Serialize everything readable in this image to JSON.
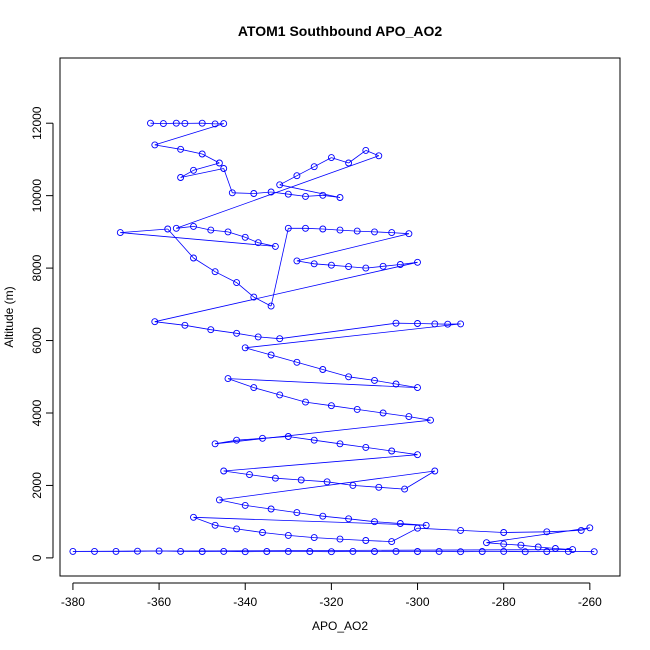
{
  "chart_data": {
    "type": "scatter",
    "title": "ATOM1 Southbound APO_AO2",
    "xlabel": "APO_AO2",
    "ylabel": "Altitude (m)",
    "xlim": [
      -383,
      -253
    ],
    "ylim": [
      -500,
      13800
    ],
    "x_ticks": [
      -380,
      -360,
      -340,
      -320,
      -300,
      -280,
      -260
    ],
    "y_ticks": [
      0,
      2000,
      4000,
      6000,
      8000,
      10000,
      12000
    ],
    "grid": false,
    "legend": "none",
    "series_color": "#0000ff",
    "marker": "open-circle",
    "connected": true,
    "points": [
      [
        -362,
        12000
      ],
      [
        -359,
        11990
      ],
      [
        -356,
        12000
      ],
      [
        -354,
        11995
      ],
      [
        -350,
        12000
      ],
      [
        -347,
        11980
      ],
      [
        -345,
        11990
      ],
      [
        -361,
        11400
      ],
      [
        -355,
        11280
      ],
      [
        -350,
        11150
      ],
      [
        -346,
        10900
      ],
      [
        -352,
        10700
      ],
      [
        -355,
        10500
      ],
      [
        -345,
        10750
      ],
      [
        -343,
        10080
      ],
      [
        -338,
        10060
      ],
      [
        -334,
        10100
      ],
      [
        -330,
        10040
      ],
      [
        -326,
        9980
      ],
      [
        -322,
        10010
      ],
      [
        -318,
        9950
      ],
      [
        -332,
        10300
      ],
      [
        -328,
        10550
      ],
      [
        -324,
        10800
      ],
      [
        -320,
        11050
      ],
      [
        -316,
        10900
      ],
      [
        -312,
        11250
      ],
      [
        -309,
        11100
      ],
      [
        -356,
        9100
      ],
      [
        -352,
        9150
      ],
      [
        -348,
        9050
      ],
      [
        -344,
        9000
      ],
      [
        -340,
        8850
      ],
      [
        -337,
        8700
      ],
      [
        -333,
        8600
      ],
      [
        -369,
        8980
      ],
      [
        -358,
        9080
      ],
      [
        -352,
        8280
      ],
      [
        -347,
        7900
      ],
      [
        -342,
        7600
      ],
      [
        -338,
        7200
      ],
      [
        -334,
        6950
      ],
      [
        -330,
        9100
      ],
      [
        -326,
        9100
      ],
      [
        -322,
        9080
      ],
      [
        -318,
        9050
      ],
      [
        -314,
        9020
      ],
      [
        -310,
        9000
      ],
      [
        -306,
        8980
      ],
      [
        -302,
        8950
      ],
      [
        -328,
        8200
      ],
      [
        -324,
        8120
      ],
      [
        -320,
        8080
      ],
      [
        -316,
        8040
      ],
      [
        -312,
        8000
      ],
      [
        -308,
        8050
      ],
      [
        -304,
        8100
      ],
      [
        -300,
        8160
      ],
      [
        -361,
        6520
      ],
      [
        -354,
        6420
      ],
      [
        -348,
        6300
      ],
      [
        -342,
        6200
      ],
      [
        -337,
        6100
      ],
      [
        -332,
        6050
      ],
      [
        -305,
        6480
      ],
      [
        -300,
        6470
      ],
      [
        -296,
        6460
      ],
      [
        -293,
        6450
      ],
      [
        -290,
        6460
      ],
      [
        -340,
        5800
      ],
      [
        -334,
        5600
      ],
      [
        -328,
        5400
      ],
      [
        -322,
        5200
      ],
      [
        -316,
        5000
      ],
      [
        -310,
        4900
      ],
      [
        -305,
        4800
      ],
      [
        -300,
        4700
      ],
      [
        -344,
        4950
      ],
      [
        -338,
        4700
      ],
      [
        -332,
        4500
      ],
      [
        -326,
        4300
      ],
      [
        -320,
        4200
      ],
      [
        -314,
        4100
      ],
      [
        -308,
        4000
      ],
      [
        -302,
        3900
      ],
      [
        -297,
        3800
      ],
      [
        -347,
        3150
      ],
      [
        -342,
        3250
      ],
      [
        -336,
        3300
      ],
      [
        -330,
        3350
      ],
      [
        -324,
        3250
      ],
      [
        -318,
        3150
      ],
      [
        -312,
        3050
      ],
      [
        -306,
        2950
      ],
      [
        -300,
        2850
      ],
      [
        -345,
        2400
      ],
      [
        -339,
        2300
      ],
      [
        -333,
        2200
      ],
      [
        -327,
        2150
      ],
      [
        -321,
        2100
      ],
      [
        -315,
        2000
      ],
      [
        -309,
        1950
      ],
      [
        -303,
        1900
      ],
      [
        -296,
        2400
      ],
      [
        -346,
        1600
      ],
      [
        -340,
        1450
      ],
      [
        -334,
        1350
      ],
      [
        -328,
        1250
      ],
      [
        -322,
        1150
      ],
      [
        -316,
        1080
      ],
      [
        -310,
        1000
      ],
      [
        -304,
        950
      ],
      [
        -298,
        900
      ],
      [
        -352,
        1120
      ],
      [
        -347,
        900
      ],
      [
        -342,
        800
      ],
      [
        -336,
        700
      ],
      [
        -330,
        620
      ],
      [
        -324,
        560
      ],
      [
        -318,
        520
      ],
      [
        -312,
        480
      ],
      [
        -306,
        450
      ],
      [
        -300,
        820
      ],
      [
        -290,
        760
      ],
      [
        -280,
        700
      ],
      [
        -270,
        720
      ],
      [
        -262,
        760
      ],
      [
        -260,
        830
      ],
      [
        -284,
        420
      ],
      [
        -280,
        380
      ],
      [
        -276,
        350
      ],
      [
        -272,
        300
      ],
      [
        -268,
        260
      ],
      [
        -264,
        230
      ],
      [
        -380,
        180
      ],
      [
        -375,
        180
      ],
      [
        -370,
        180
      ],
      [
        -365,
        185
      ],
      [
        -360,
        190
      ],
      [
        -355,
        180
      ],
      [
        -350,
        175
      ],
      [
        -345,
        180
      ],
      [
        -340,
        170
      ],
      [
        -335,
        175
      ],
      [
        -330,
        180
      ],
      [
        -325,
        175
      ],
      [
        -320,
        170
      ],
      [
        -315,
        180
      ],
      [
        -310,
        175
      ],
      [
        -305,
        180
      ],
      [
        -300,
        175
      ],
      [
        -295,
        180
      ],
      [
        -290,
        170
      ],
      [
        -285,
        175
      ],
      [
        -280,
        180
      ],
      [
        -275,
        170
      ],
      [
        -270,
        175
      ],
      [
        -265,
        180
      ],
      [
        -259,
        170
      ]
    ]
  }
}
